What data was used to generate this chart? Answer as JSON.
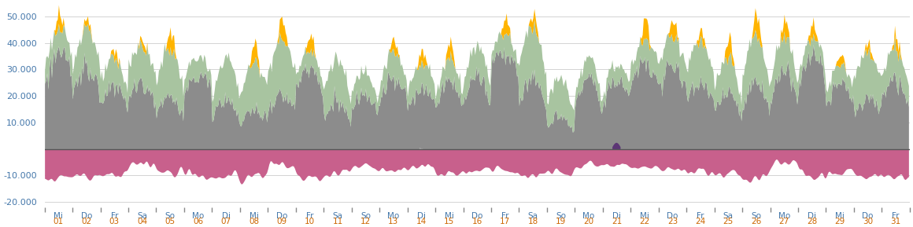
{
  "ylim": [
    -22000,
    55000
  ],
  "yticks": [
    -20000,
    -10000,
    0,
    10000,
    20000,
    30000,
    40000,
    50000
  ],
  "ytick_labels": [
    "-20.000",
    "-10.000",
    "",
    "10.000",
    "20.000",
    "30.000",
    "40.000",
    "50.000"
  ],
  "n_days": 31,
  "hours_per_day": 24,
  "day_labels": [
    "Mi\n01",
    "Do\n02",
    "Fr\n03",
    "Sa\n04",
    "So\n05",
    "Mo\n06",
    "Di\n07",
    "Mi\n08",
    "Do\n09",
    "Fr\n10",
    "Sa\n11",
    "So\n12",
    "Mo\n13",
    "Di\n14",
    "Mi\n15",
    "Do\n16",
    "Fr\n17",
    "Sa\n18",
    "So\n19",
    "Mo\n20",
    "Di\n21",
    "Mi\n22",
    "Do\n23",
    "Fr\n24",
    "Sa\n25",
    "So\n26",
    "Mo\n27",
    "Di\n28",
    "Mi\n29",
    "Do\n30",
    "Fr\n31"
  ],
  "color_traditional": "#8c8c8c",
  "color_wind": "#a8c4a0",
  "color_pv": "#ffb400",
  "color_negative": "#c8608c",
  "color_purple": "#5c3575",
  "color_zero_line": "#555555",
  "bg_color": "#ffffff",
  "grid_color": "#cccccc",
  "tick_color_top": "#4477aa",
  "tick_color_bottom": "#cc6600",
  "figsize": [
    11.6,
    2.89
  ],
  "dpi": 100,
  "pv_days": [
    0,
    1,
    2,
    3,
    4,
    7,
    8,
    9,
    12,
    13,
    14,
    16,
    17,
    21,
    22,
    23,
    24,
    25,
    26,
    27,
    28,
    29,
    30
  ],
  "pv_peak_mw": 10000
}
